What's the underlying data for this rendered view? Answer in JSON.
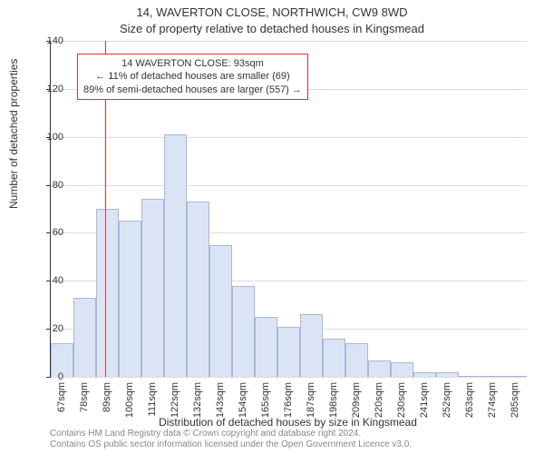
{
  "title_main": "14, WAVERTON CLOSE, NORTHWICH, CW9 8WD",
  "title_sub": "Size of property relative to detached houses in Kingsmead",
  "ylabel": "Number of detached properties",
  "xlabel": "Distribution of detached houses by size in Kingsmead",
  "footer_line1": "Contains HM Land Registry data © Crown copyright and database right 2024.",
  "footer_line2": "Contains OS public sector information licensed under the Open Government Licence v3.0.",
  "chart": {
    "type": "histogram",
    "ylim": [
      0,
      140
    ],
    "ytick_step": 20,
    "yticks": [
      0,
      20,
      40,
      60,
      80,
      100,
      120,
      140
    ],
    "xticks": [
      "67sqm",
      "78sqm",
      "89sqm",
      "100sqm",
      "111sqm",
      "122sqm",
      "132sqm",
      "143sqm",
      "154sqm",
      "165sqm",
      "176sqm",
      "187sqm",
      "198sqm",
      "209sqm",
      "220sqm",
      "230sqm",
      "241sqm",
      "252sqm",
      "263sqm",
      "274sqm",
      "285sqm"
    ],
    "values": [
      14,
      33,
      70,
      65,
      74,
      101,
      73,
      55,
      38,
      25,
      21,
      26,
      16,
      14,
      7,
      6,
      2,
      2,
      0,
      0,
      0
    ],
    "bar_fill": "#dbe4f4",
    "bar_stroke": "#a9b8d6",
    "grid_color": "#d9dde3",
    "background_color": "#ffffff",
    "bar_width_ratio": 1.0
  },
  "reference_line": {
    "x_index": 2.4,
    "color": "#d33",
    "annotation": {
      "line1": "14 WAVERTON CLOSE: 93sqm",
      "line2": "← 11% of detached houses are smaller (69)",
      "line3": "89% of semi-detached houses are larger (557) →",
      "border_color": "#d33"
    }
  }
}
